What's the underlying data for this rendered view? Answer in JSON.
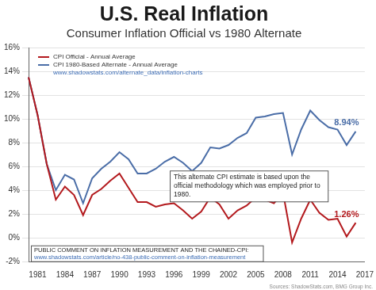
{
  "chart_data": {
    "type": "line",
    "title": "U.S. Real Inflation",
    "subtitle": "Consumer Inflation Official vs 1980 Alternate",
    "categories": [
      null,
      1981,
      null,
      null,
      1984,
      null,
      null,
      1987,
      null,
      null,
      1990,
      null,
      null,
      1993,
      null,
      null,
      1996,
      null,
      null,
      1999,
      null,
      null,
      2002,
      null,
      null,
      2005,
      null,
      null,
      2008,
      null,
      null,
      2011,
      null,
      null,
      2014,
      null,
      null,
      2017
    ],
    "series": [
      {
        "name": "CPI Official - Annual Average",
        "color": "#b3191d",
        "values": [
          13.5,
          10.3,
          6.2,
          3.2,
          4.3,
          3.6,
          1.9,
          3.6,
          4.1,
          4.8,
          5.4,
          4.2,
          3.0,
          3.0,
          2.6,
          2.8,
          2.9,
          2.3,
          1.6,
          2.2,
          3.4,
          2.8,
          1.6,
          2.3,
          2.7,
          3.4,
          3.2,
          2.9,
          3.8,
          -0.4,
          1.6,
          3.2,
          2.1,
          1.5,
          1.6,
          0.1,
          1.26,
          null
        ],
        "value_labels": [
          null,
          null,
          null,
          null,
          null,
          null,
          null,
          null,
          null,
          null,
          null,
          null,
          null,
          null,
          null,
          null,
          null,
          null,
          null,
          null,
          null,
          null,
          null,
          null,
          null,
          null,
          null,
          null,
          null,
          null,
          null,
          null,
          null,
          null,
          null,
          null,
          "1.26%",
          null
        ]
      },
      {
        "name": "CPI 1980-Based Alternate - Annual Average",
        "color": "#4a6da7",
        "values": [
          13.5,
          10.3,
          6.2,
          4.0,
          5.3,
          4.9,
          2.9,
          5.0,
          5.8,
          6.4,
          7.2,
          6.6,
          5.4,
          5.4,
          5.8,
          6.4,
          6.8,
          6.3,
          5.6,
          6.3,
          7.6,
          7.5,
          7.8,
          8.4,
          8.8,
          10.1,
          10.2,
          10.4,
          10.5,
          7.0,
          9.1,
          10.7,
          9.9,
          9.3,
          9.1,
          7.8,
          8.94,
          null
        ],
        "value_labels": [
          null,
          null,
          null,
          null,
          null,
          null,
          null,
          null,
          null,
          null,
          null,
          null,
          null,
          null,
          null,
          null,
          null,
          null,
          null,
          null,
          null,
          null,
          null,
          null,
          null,
          null,
          null,
          null,
          null,
          null,
          null,
          null,
          null,
          null,
          null,
          null,
          "8.94%",
          null
        ]
      }
    ],
    "ylim": [
      -2,
      16
    ],
    "yticks": [
      {
        "value": -2,
        "label": "-2%"
      },
      {
        "value": 0,
        "label": "0%"
      },
      {
        "value": 2,
        "label": "2%"
      },
      {
        "value": 4,
        "label": "4%"
      },
      {
        "value": 6,
        "label": "6%"
      },
      {
        "value": 8,
        "label": "8%"
      },
      {
        "value": 10,
        "label": "10%"
      },
      {
        "value": 12,
        "label": "12%"
      },
      {
        "value": 14,
        "label": "14%"
      },
      {
        "value": 16,
        "label": "16%"
      }
    ],
    "grid": true,
    "legend": "top-left",
    "legend_link": "www.shadowstats.com/alternate_data/inflation-charts",
    "method_note": "This alternate CPI estimate is based upon the official methodology which was employed prior to 1980.",
    "comment_title": "PUBLIC COMMENT ON INFLATION MEASUREMENT AND THE CHAINED-CPI:",
    "comment_link": "www.shadowstats.com/article/no-438-public-comment-on-inflation-measurement",
    "source": "Sources: ShadowStats.com, BMG Group Inc."
  }
}
